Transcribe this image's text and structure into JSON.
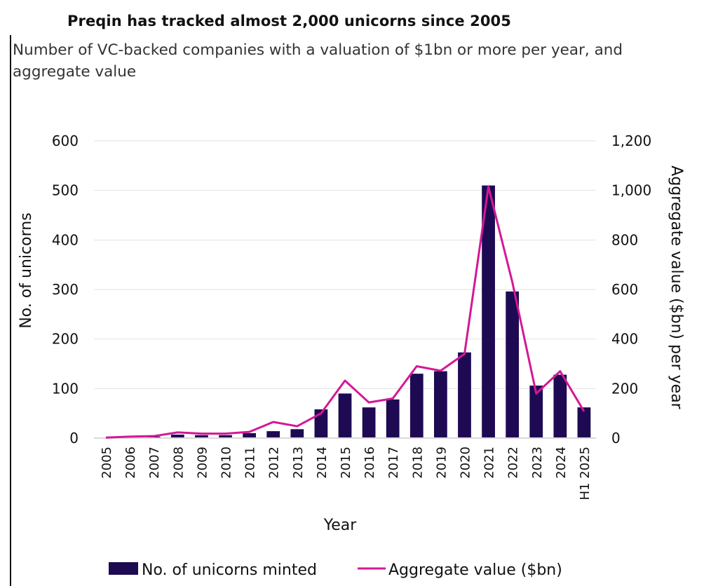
{
  "chart_data": {
    "type": "bar+line",
    "title": "Preqin has tracked almost 2,000 unicorns since 2005",
    "subtitle": "Number of VC-backed companies with a valuation of $1bn or more per year, and aggregate value",
    "categories": [
      "2005",
      "2006",
      "2007",
      "2008",
      "2009",
      "2010",
      "2011",
      "2012",
      "2013",
      "2014",
      "2015",
      "2016",
      "2017",
      "2018",
      "2019",
      "2020",
      "2021",
      "2022",
      "2023",
      "2024",
      "H1 2025"
    ],
    "series": [
      {
        "name": "No. of unicorns minted",
        "type": "bar",
        "axis": "left",
        "color": "#1e0a52",
        "values": [
          1,
          3,
          3,
          7,
          6,
          6,
          10,
          14,
          18,
          58,
          90,
          62,
          78,
          130,
          135,
          173,
          510,
          296,
          106,
          128,
          62
        ]
      },
      {
        "name": "Aggregate value ($bn)",
        "type": "line",
        "axis": "right",
        "color": "#d41895",
        "values": [
          2,
          6,
          8,
          23,
          18,
          18,
          25,
          65,
          48,
          100,
          232,
          144,
          160,
          290,
          272,
          340,
          1015,
          630,
          180,
          270,
          108
        ]
      }
    ],
    "xlabel": "Year",
    "ylabel": "No. of unicorns",
    "y2label": "Aggregate  value ($bn) per year",
    "ylim": [
      0,
      600
    ],
    "y2lim": [
      0,
      1200
    ],
    "yticks": [
      "0",
      "100",
      "200",
      "300",
      "400",
      "500",
      "600"
    ],
    "y2ticks": [
      "0",
      "200",
      "400",
      "600",
      "800",
      "1,000",
      "1,200"
    ],
    "grid": true,
    "legend_position": "bottom"
  }
}
